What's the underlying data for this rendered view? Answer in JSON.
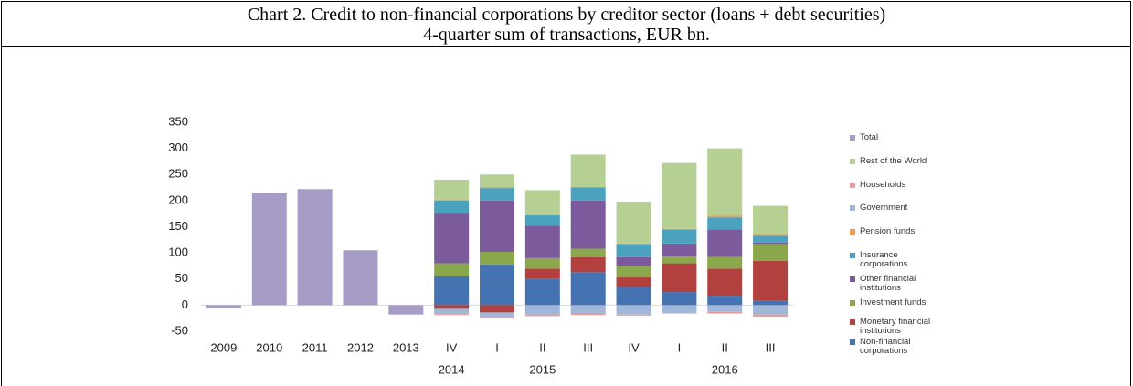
{
  "chart_data": {
    "type": "stacked-bar",
    "title": "Chart 2. Credit to non-financial corporations by creditor sector  (loans + debt securities)",
    "subtitle": "4-quarter sum of transactions, EUR bn.",
    "categories": [
      "2009",
      "2010",
      "2011",
      "2012",
      "2013",
      "IV",
      "I",
      "II",
      "III",
      "IV",
      "I",
      "II",
      "III"
    ],
    "category_groups": [
      null,
      null,
      null,
      null,
      null,
      "2014",
      null,
      "2015",
      null,
      null,
      null,
      "2016",
      null
    ],
    "ylim": [
      -50,
      350
    ],
    "yticks": [
      -50,
      0,
      50,
      100,
      150,
      200,
      250,
      300,
      350
    ],
    "grid": false,
    "series": [
      {
        "name": "Total",
        "color": "#a69cc6",
        "values": [
          -5,
          215,
          222,
          105,
          -18,
          null,
          null,
          null,
          null,
          null,
          null,
          null,
          null
        ]
      },
      {
        "name": "Rest of the World",
        "color": "#b6d094",
        "values": [
          null,
          null,
          null,
          null,
          null,
          38,
          24,
          47,
          62,
          80,
          126,
          129,
          54
        ]
      },
      {
        "name": "Households",
        "color": "#e79c9b",
        "values": [
          null,
          null,
          null,
          null,
          null,
          -2,
          -3,
          -3,
          -4,
          -2,
          -1,
          -3,
          -4
        ]
      },
      {
        "name": "Government",
        "color": "#a1b7da",
        "values": [
          null,
          null,
          null,
          null,
          null,
          -10,
          -8,
          -18,
          -15,
          -18,
          -15,
          -13,
          -18
        ]
      },
      {
        "name": "Pension funds",
        "color": "#f29d4c",
        "values": [
          null,
          null,
          null,
          null,
          null,
          2,
          2,
          1,
          1,
          1,
          1,
          3,
          3
        ]
      },
      {
        "name": "Insurance corporations",
        "color": "#4aa2bf",
        "values": [
          null,
          null,
          null,
          null,
          null,
          23,
          24,
          20,
          25,
          25,
          27,
          23,
          13
        ]
      },
      {
        "name": "Other financial institutions",
        "color": "#7b5b9b",
        "values": [
          null,
          null,
          null,
          null,
          null,
          97,
          98,
          62,
          92,
          17,
          25,
          53,
          3
        ]
      },
      {
        "name": "Investment funds",
        "color": "#8aa84b",
        "values": [
          null,
          null,
          null,
          null,
          null,
          25,
          24,
          20,
          16,
          22,
          13,
          22,
          32
        ]
      },
      {
        "name": "Monetary financial institutions",
        "color": "#b1403e",
        "values": [
          null,
          null,
          null,
          null,
          null,
          -7,
          -14,
          20,
          29,
          18,
          55,
          52,
          77
        ]
      },
      {
        "name": "Non-financial corporations",
        "color": "#4573b1",
        "values": [
          null,
          null,
          null,
          null,
          null,
          55,
          78,
          50,
          63,
          35,
          25,
          18,
          8
        ]
      }
    ]
  }
}
